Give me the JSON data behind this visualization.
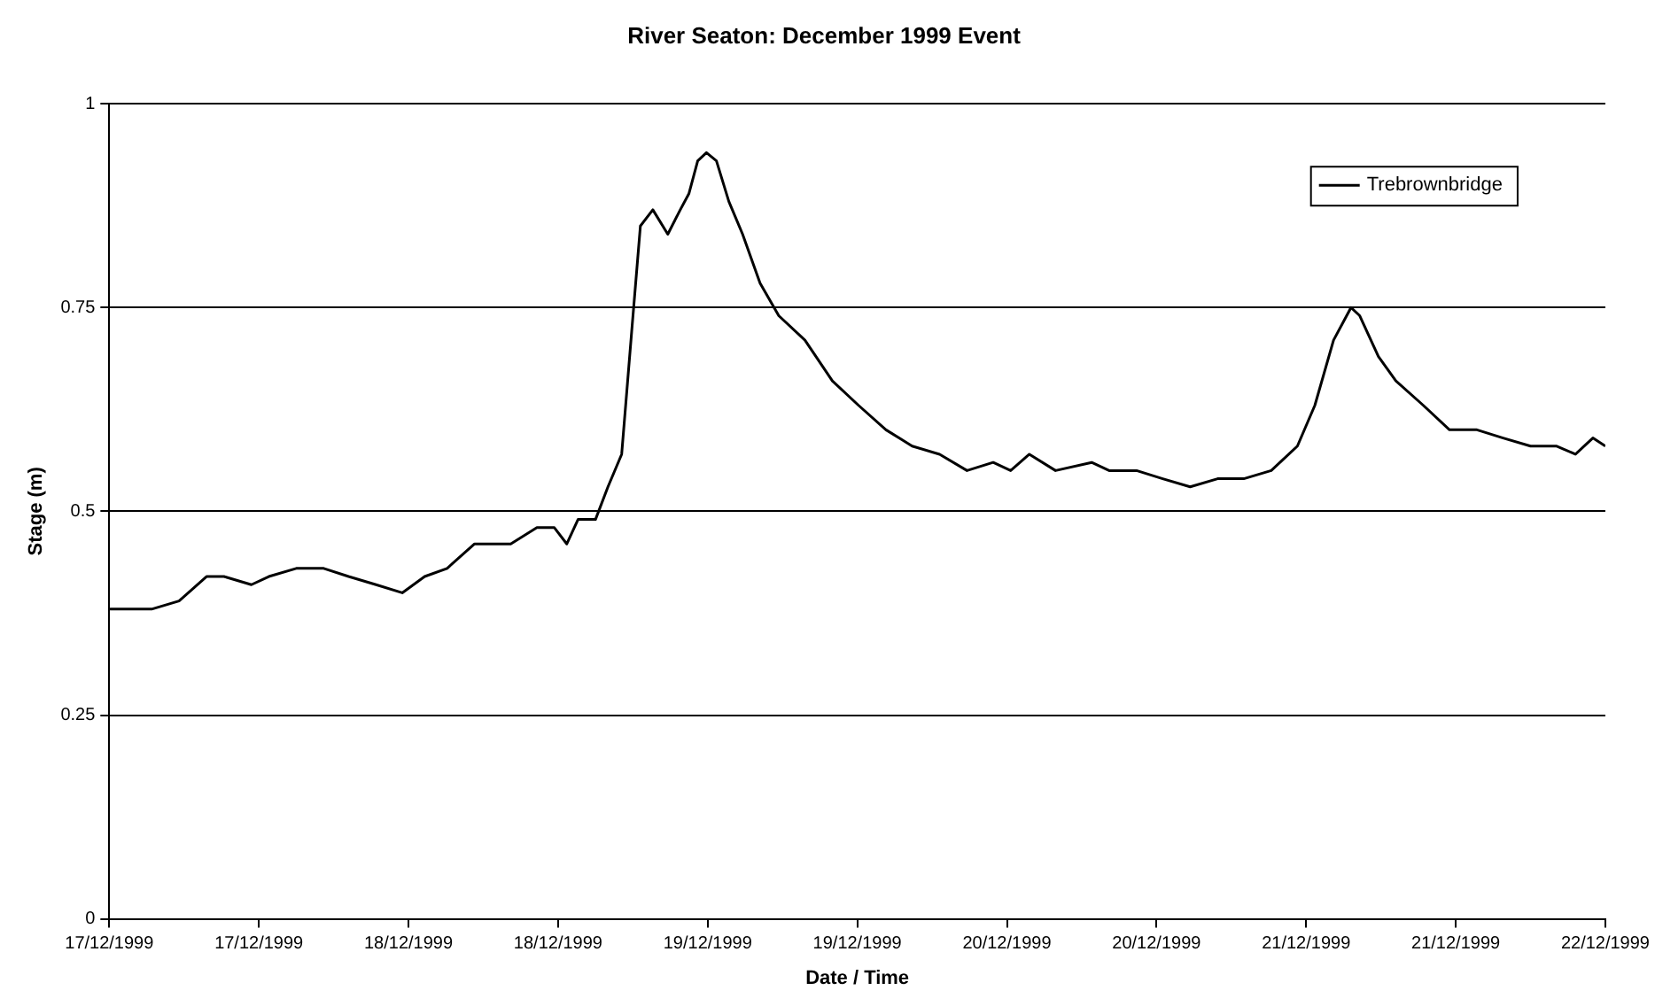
{
  "chart_data": {
    "type": "line",
    "title": "River Seaton: December 1999 Event",
    "xlabel": "Date / Time",
    "ylabel": "Stage (m)",
    "x": [
      "1999-12-17T00:00",
      "1999-12-17T03:24",
      "1999-12-17T05:36",
      "1999-12-17T07:48",
      "1999-12-17T09:12",
      "1999-12-17T11:24",
      "1999-12-17T12:48",
      "1999-12-17T15:00",
      "1999-12-17T17:12",
      "1999-12-17T19:12",
      "1999-12-17T21:24",
      "1999-12-17T23:30",
      "1999-12-18T01:18",
      "1999-12-18T03:06",
      "1999-12-18T05:18",
      "1999-12-18T06:42",
      "1999-12-18T08:12",
      "1999-12-18T10:18",
      "1999-12-18T11:42",
      "1999-12-18T12:42",
      "1999-12-18T13:36",
      "1999-12-18T15:00",
      "1999-12-18T16:00",
      "1999-12-18T17:06",
      "1999-12-18T17:54",
      "1999-12-18T18:36",
      "1999-12-18T19:36",
      "1999-12-18T20:48",
      "1999-12-18T21:48",
      "1999-12-18T22:30",
      "1999-12-18T23:12",
      "1999-12-18T23:54",
      "1999-12-19T00:42",
      "1999-12-19T01:42",
      "1999-12-19T02:48",
      "1999-12-19T04:12",
      "1999-12-19T05:42",
      "1999-12-19T07:48",
      "1999-12-19T10:00",
      "1999-12-19T12:06",
      "1999-12-19T14:18",
      "1999-12-19T16:24",
      "1999-12-19T18:36",
      "1999-12-19T20:48",
      "1999-12-19T22:54",
      "1999-12-20T00:18",
      "1999-12-20T01:48",
      "1999-12-20T03:54",
      "1999-12-20T06:48",
      "1999-12-20T08:12",
      "1999-12-20T10:24",
      "1999-12-20T12:30",
      "1999-12-20T14:42",
      "1999-12-20T16:54",
      "1999-12-20T19:00",
      "1999-12-20T21:12",
      "1999-12-20T23:18",
      "1999-12-21T00:42",
      "1999-12-21T02:12",
      "1999-12-21T03:36",
      "1999-12-21T04:18",
      "1999-12-21T05:48",
      "1999-12-21T07:12",
      "1999-12-21T09:24",
      "1999-12-21T11:30",
      "1999-12-21T13:42",
      "1999-12-21T15:48",
      "1999-12-21T18:00",
      "1999-12-21T20:06",
      "1999-12-21T21:36",
      "1999-12-21T23:00",
      "1999-12-22T00:00"
    ],
    "series": [
      {
        "name": "Trebrownbridge",
        "color": "#000000",
        "values": [
          0.38,
          0.38,
          0.39,
          0.42,
          0.42,
          0.41,
          0.42,
          0.43,
          0.43,
          0.42,
          0.41,
          0.4,
          0.42,
          0.43,
          0.46,
          0.46,
          0.46,
          0.48,
          0.48,
          0.46,
          0.49,
          0.49,
          0.53,
          0.57,
          0.72,
          0.85,
          0.87,
          0.84,
          0.87,
          0.89,
          0.93,
          0.94,
          0.93,
          0.88,
          0.84,
          0.78,
          0.74,
          0.71,
          0.66,
          0.63,
          0.6,
          0.58,
          0.57,
          0.55,
          0.56,
          0.55,
          0.57,
          0.55,
          0.56,
          0.55,
          0.55,
          0.54,
          0.53,
          0.54,
          0.54,
          0.55,
          0.58,
          0.63,
          0.71,
          0.75,
          0.74,
          0.69,
          0.66,
          0.63,
          0.6,
          0.6,
          0.59,
          0.58,
          0.58,
          0.57,
          0.59,
          0.58
        ]
      }
    ],
    "xlim": [
      "1999-12-17T00:00",
      "1999-12-22T00:00"
    ],
    "xticks": [
      {
        "value": "1999-12-17T00:00",
        "label": "17/12/1999"
      },
      {
        "value": "1999-12-17T12:00",
        "label": "17/12/1999"
      },
      {
        "value": "1999-12-18T00:00",
        "label": "18/12/1999"
      },
      {
        "value": "1999-12-18T12:00",
        "label": "18/12/1999"
      },
      {
        "value": "1999-12-19T00:00",
        "label": "19/12/1999"
      },
      {
        "value": "1999-12-19T12:00",
        "label": "19/12/1999"
      },
      {
        "value": "1999-12-20T00:00",
        "label": "20/12/1999"
      },
      {
        "value": "1999-12-20T12:00",
        "label": "20/12/1999"
      },
      {
        "value": "1999-12-21T00:00",
        "label": "21/12/1999"
      },
      {
        "value": "1999-12-21T12:00",
        "label": "21/12/1999"
      },
      {
        "value": "1999-12-22T00:00",
        "label": "22/12/1999"
      }
    ],
    "ylim": [
      0,
      1
    ],
    "yticks": [
      0,
      0.25,
      0.5,
      0.75,
      1
    ],
    "grid": "y",
    "legend": "top right",
    "marker": "none",
    "line_style": "solid"
  }
}
